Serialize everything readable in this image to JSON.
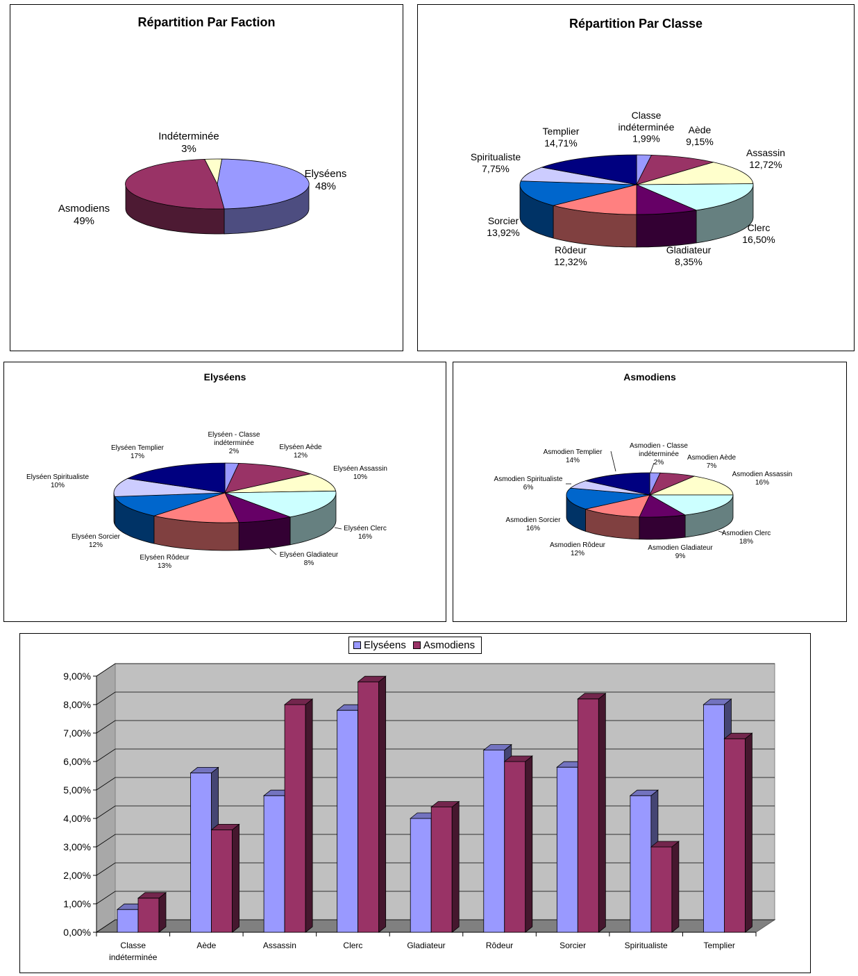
{
  "chart_data": [
    {
      "type": "pie",
      "title": "Répartition Par Faction",
      "slices": [
        {
          "label": "Elyséens",
          "value": 48,
          "display": "48%",
          "color": "#9999FF"
        },
        {
          "label": "Asmodiens",
          "value": 49,
          "display": "49%",
          "color": "#993366"
        },
        {
          "label": "Indéterminée",
          "value": 3,
          "display": "3%",
          "color": "#FFFFCC"
        }
      ]
    },
    {
      "type": "pie",
      "title": "Répartition Par Classe",
      "slices": [
        {
          "label": "Classe indéterminée",
          "value": 1.99,
          "display": "1,99%",
          "color": "#9999FF"
        },
        {
          "label": "Aède",
          "value": 9.15,
          "display": "9,15%",
          "color": "#993366"
        },
        {
          "label": "Assassin",
          "value": 12.72,
          "display": "12,72%",
          "color": "#FFFFCC"
        },
        {
          "label": "Clerc",
          "value": 16.5,
          "display": "16,50%",
          "color": "#CCFFFF"
        },
        {
          "label": "Gladiateur",
          "value": 8.35,
          "display": "8,35%",
          "color": "#660066"
        },
        {
          "label": "Rôdeur",
          "value": 12.32,
          "display": "12,32%",
          "color": "#FF8080"
        },
        {
          "label": "Sorcier",
          "value": 13.92,
          "display": "13,92%",
          "color": "#0066CC"
        },
        {
          "label": "Spiritualiste",
          "value": 7.75,
          "display": "7,75%",
          "color": "#CCCCFF"
        },
        {
          "label": "Templier",
          "value": 14.71,
          "display": "14,71%",
          "color": "#000080"
        }
      ]
    },
    {
      "type": "pie",
      "title": "Elyséens",
      "slices": [
        {
          "label": "Elyséen - Classe indéterminée",
          "value": 2,
          "display": "2%",
          "color": "#9999FF"
        },
        {
          "label": "Elyséen Aède",
          "value": 12,
          "display": "12%",
          "color": "#993366"
        },
        {
          "label": "Elyséen Assassin",
          "value": 10,
          "display": "10%",
          "color": "#FFFFCC"
        },
        {
          "label": "Elyséen Clerc",
          "value": 16,
          "display": "16%",
          "color": "#CCFFFF"
        },
        {
          "label": "Elyséen Gladiateur",
          "value": 8,
          "display": "8%",
          "color": "#660066"
        },
        {
          "label": "Elyséen Rôdeur",
          "value": 13,
          "display": "13%",
          "color": "#FF8080"
        },
        {
          "label": "Elyséen Sorcier",
          "value": 12,
          "display": "12%",
          "color": "#0066CC"
        },
        {
          "label": "Elyséen Spiritualiste",
          "value": 10,
          "display": "10%",
          "color": "#CCCCFF"
        },
        {
          "label": "Elyséen Templier",
          "value": 17,
          "display": "17%",
          "color": "#000080"
        }
      ]
    },
    {
      "type": "pie",
      "title": "Asmodiens",
      "slices": [
        {
          "label": "Asmodien - Classe indéterminée",
          "value": 2,
          "display": "2%",
          "color": "#9999FF"
        },
        {
          "label": "Asmodien Aède",
          "value": 7,
          "display": "7%",
          "color": "#993366"
        },
        {
          "label": "Asmodien Assassin",
          "value": 16,
          "display": "16%",
          "color": "#FFFFCC"
        },
        {
          "label": "Asmodien Clerc",
          "value": 18,
          "display": "18%",
          "color": "#CCFFFF"
        },
        {
          "label": "Asmodien Gladiateur",
          "value": 9,
          "display": "9%",
          "color": "#660066"
        },
        {
          "label": "Asmodien Rôdeur",
          "value": 12,
          "display": "12%",
          "color": "#FF8080"
        },
        {
          "label": "Asmodien Sorcier",
          "value": 16,
          "display": "16%",
          "color": "#0066CC"
        },
        {
          "label": "Asmodien Spiritualiste",
          "value": 6,
          "display": "6%",
          "color": "#CCCCFF"
        },
        {
          "label": "Asmodien Templier",
          "value": 14,
          "display": "14%",
          "color": "#000080"
        }
      ]
    },
    {
      "type": "bar",
      "title": "",
      "categories": [
        "Classe indéterminée",
        "Aède",
        "Assassin",
        "Clerc",
        "Gladiateur",
        "Rôdeur",
        "Sorcier",
        "Spiritualiste",
        "Templier"
      ],
      "series": [
        {
          "name": "Elyséens",
          "color": "#9999FF",
          "values": [
            0.8,
            5.6,
            4.8,
            7.8,
            4.0,
            6.4,
            5.8,
            4.8,
            8.0
          ]
        },
        {
          "name": "Asmodiens",
          "color": "#993366",
          "values": [
            1.2,
            3.6,
            8.0,
            8.8,
            4.4,
            6.0,
            8.2,
            3.0,
            6.8
          ]
        }
      ],
      "ylim": [
        0,
        9
      ],
      "yticks": [
        "0,00%",
        "1,00%",
        "2,00%",
        "3,00%",
        "4,00%",
        "5,00%",
        "6,00%",
        "7,00%",
        "8,00%",
        "9,00%"
      ],
      "grid": true,
      "legend": "top"
    }
  ]
}
